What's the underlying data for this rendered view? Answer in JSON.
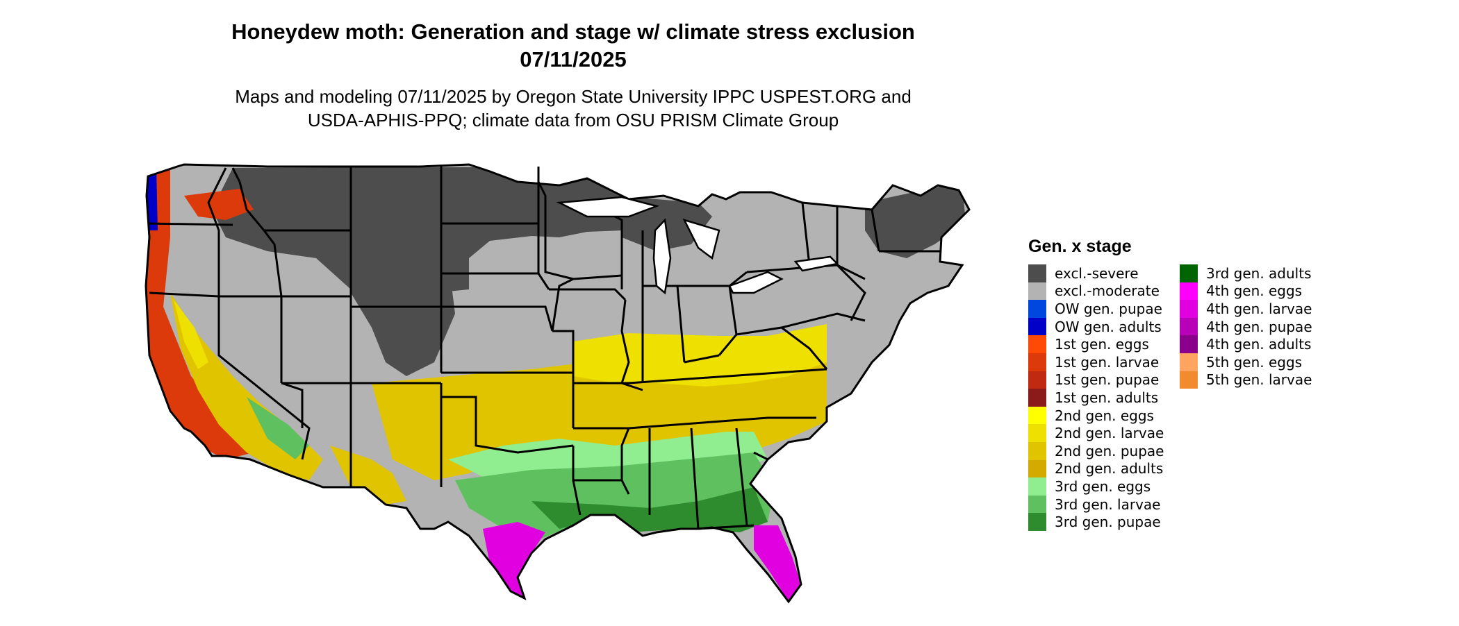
{
  "title_line1": "Honeydew moth: Generation and stage w/ climate stress exclusion",
  "title_line2": "07/11/2025",
  "subtitle_line1": "Maps and modeling 07/11/2025 by Oregon State University IPPC USPEST.ORG and",
  "subtitle_line2": "USDA-APHIS-PPQ; climate data from OSU PRISM Climate Group",
  "legend": {
    "title": "Gen. x stage",
    "items": [
      {
        "label": "excl.-severe",
        "color": "#4d4d4d"
      },
      {
        "label": "excl.-moderate",
        "color": "#b3b3b3"
      },
      {
        "label": "OW gen. pupae",
        "color": "#0047e0"
      },
      {
        "label": "OW gen. adults",
        "color": "#0000c8"
      },
      {
        "label": "1st gen. eggs",
        "color": "#ff4a05"
      },
      {
        "label": "1st gen. larvae",
        "color": "#dc3a0a"
      },
      {
        "label": "1st gen. pupae",
        "color": "#bf2a10"
      },
      {
        "label": "1st gen. adults",
        "color": "#8b1a1a"
      },
      {
        "label": "2nd gen. eggs",
        "color": "#ffff00"
      },
      {
        "label": "2nd gen. larvae",
        "color": "#eee000"
      },
      {
        "label": "2nd gen. pupae",
        "color": "#e0c400"
      },
      {
        "label": "2nd gen. adults",
        "color": "#d4aa00"
      },
      {
        "label": "3rd gen. eggs",
        "color": "#90ee90"
      },
      {
        "label": "3rd gen. larvae",
        "color": "#5ec05e"
      },
      {
        "label": "3rd gen. pupae",
        "color": "#2e8b2e"
      },
      {
        "label": "3rd gen. adults",
        "color": "#006400"
      },
      {
        "label": "4th gen. eggs",
        "color": "#ff00ff"
      },
      {
        "label": "4th gen. larvae",
        "color": "#e000e0"
      },
      {
        "label": "4th gen. pupae",
        "color": "#b800b8"
      },
      {
        "label": "4th gen. adults",
        "color": "#8b008b"
      },
      {
        "label": "5th gen. eggs",
        "color": "#ffa560"
      },
      {
        "label": "5th gen. larvae",
        "color": "#f28b30"
      }
    ]
  }
}
